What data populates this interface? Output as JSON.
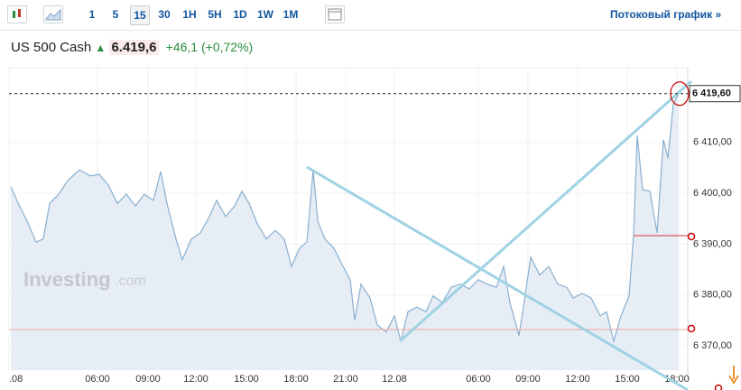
{
  "toolbar": {
    "intervals": [
      "1",
      "5",
      "15",
      "30",
      "1H",
      "5H",
      "1D",
      "1W",
      "1M"
    ],
    "active": 2,
    "stream_link": "Потоковый график »"
  },
  "header": {
    "instrument": "US 500 Cash",
    "price": "6.419,6",
    "change": "+46,1 (+0,72%)"
  },
  "watermark": {
    "brand": "Investing",
    "suffix": ".com"
  },
  "chart_data": {
    "type": "line",
    "x": [
      0.4,
      2,
      4,
      6,
      7.6,
      9,
      11,
      13,
      15.6,
      18,
      20,
      22,
      24,
      26,
      28,
      30,
      32,
      33.6,
      35,
      37,
      38.4,
      40.4,
      42.4,
      44.4,
      46,
      48,
      50,
      51.6,
      53.2,
      55,
      57,
      59,
      61,
      62.6,
      64.4,
      66,
      67.4,
      68.4,
      70,
      72,
      74,
      75.6,
      76.6,
      78,
      80,
      81.6,
      83.6,
      85.4,
      86.8,
      88.4,
      90.4,
      92.4,
      94,
      96,
      98,
      100,
      102,
      104,
      106,
      108,
      109.6,
      111,
      113,
      114,
      115.6,
      117.6,
      119.6,
      121.6,
      123.6,
      125,
      127,
      129,
      131,
      132.4,
      134,
      135.6,
      137.4,
      138.4,
      139.2,
      140.4,
      142,
      143.6,
      145,
      146,
      147.2,
      148.4
    ],
    "series": [
      {
        "name": "US 500 Cash",
        "color": "#8ab0cf",
        "values": [
          6401.3,
          6398.1,
          6394.5,
          6390.4,
          6391,
          6398,
          6399.8,
          6402.5,
          6404.6,
          6403.4,
          6403.7,
          6401.6,
          6398,
          6399.8,
          6397.5,
          6399.8,
          6398.6,
          6404.3,
          6398,
          6391,
          6386.9,
          6391,
          6392.2,
          6395.4,
          6398.6,
          6395.4,
          6397.5,
          6400.4,
          6398,
          6394,
          6391,
          6392.7,
          6391,
          6385.6,
          6389.2,
          6390.4,
          6404.6,
          6394.5,
          6391,
          6389.2,
          6385.6,
          6383,
          6375,
          6382.1,
          6379.4,
          6374.1,
          6372.7,
          6375.9,
          6370.9,
          6376.7,
          6377.6,
          6376.7,
          6379.8,
          6378.5,
          6381.5,
          6382.1,
          6381.2,
          6383,
          6382.1,
          6381.5,
          6385.6,
          6378.5,
          6372,
          6377.6,
          6387.4,
          6383.9,
          6385.6,
          6382.1,
          6381.5,
          6379.4,
          6380.3,
          6379.4,
          6375.9,
          6376.7,
          6370.9,
          6375.9,
          6379.8,
          6391.8,
          6411.4,
          6400.7,
          6400.4,
          6392.2,
          6410.5,
          6406.9,
          6417.6,
          6419.6
        ]
      }
    ],
    "xlim": [
      0,
      150.4
    ],
    "xticks": [
      {
        "value": 0,
        "label": ".08"
      },
      {
        "value": 19.6,
        "label": "06:00"
      },
      {
        "value": 30.8,
        "label": "09:00"
      },
      {
        "value": 41.4,
        "label": "12:00"
      },
      {
        "value": 52.6,
        "label": "15:00"
      },
      {
        "value": 63.6,
        "label": "18:00"
      },
      {
        "value": 74.6,
        "label": "21:00"
      },
      {
        "value": 85.4,
        "label": "12.08"
      },
      {
        "value": 104,
        "label": "06:00"
      },
      {
        "value": 115,
        "label": "09:00"
      },
      {
        "value": 126,
        "label": "12:00"
      },
      {
        "value": 137,
        "label": "15:00"
      },
      {
        "value": 148,
        "label": "18:00"
      }
    ],
    "ylim": [
      6365.2,
      6424.7
    ],
    "yticks": [
      {
        "value": 6370,
        "label": "6 370,00"
      },
      {
        "value": 6380,
        "label": "6 380,00"
      },
      {
        "value": 6390,
        "label": "6 390,00"
      },
      {
        "value": 6400,
        "label": "6 400,00"
      },
      {
        "value": 6410,
        "label": "6 410,00"
      }
    ],
    "last_price": {
      "value": 6419.6,
      "label": "6 419,60"
    },
    "grid": true
  }
}
